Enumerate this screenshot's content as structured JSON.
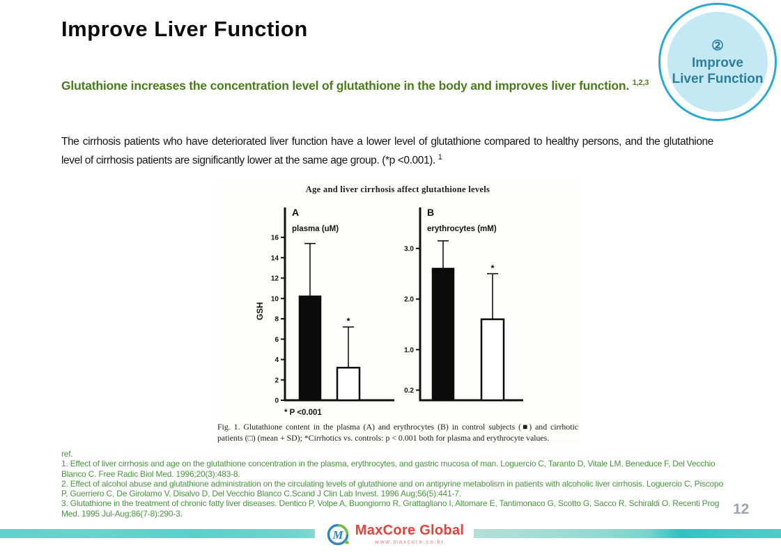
{
  "slide": {
    "title": "Improve Liver Function",
    "badge": {
      "number": "②",
      "line1": "Improve",
      "line2": "Liver Function"
    },
    "headline": {
      "text": "Glutathione increases the concentration level of glutathione in the body and improves liver function.",
      "sup": "1,2,3"
    },
    "body": {
      "text": "The cirrhosis patients who have deteriorated liver function have a lower level of glutathione compared to healthy persons, and the glutathione level of cirrhosis patients are significantly lower at the same age group.  (*p <0.001).",
      "sup": "1"
    },
    "page_number": "12"
  },
  "figure": {
    "caption": "Fig. 1. Glutathione content in the plasma (A) and erythrocytes (B) in control subjects (■) and cirrhotic patients (□) (mean + SD); *Cirrhotics vs. controls: p < 0.001 both for plasma and erythrocyte values."
  },
  "chart_data": {
    "type": "bar",
    "title": "Age and liver cirrhosis affect glutathione levels",
    "ylabel": "GSH",
    "note": "* P <0.001",
    "legend": {
      "filled_square": "control subjects",
      "open_square": "cirrhotic patients"
    },
    "panels": [
      {
        "label": "A",
        "unit_label": "plasma   (uM)",
        "ticks": [
          0,
          2,
          4,
          6,
          8,
          10,
          12,
          14,
          16
        ],
        "tick_labels": [
          "0",
          "2",
          "4",
          "6",
          "8",
          "10",
          "12",
          "14",
          "16"
        ],
        "ylim": [
          0,
          17.5
        ],
        "categories": [
          "control subjects",
          "cirrhotic patients"
        ],
        "values": [
          10.2,
          3.2
        ],
        "error_tops": [
          15.4,
          7.2
        ],
        "significant": [
          false,
          true
        ]
      },
      {
        "label": "B",
        "unit_label": "erythrocytes    (mM)",
        "ticks": [
          0.2,
          1.0,
          2.0,
          3.0
        ],
        "tick_labels": [
          "0.2",
          "1.0",
          "2.0",
          "3.0"
        ],
        "ylim": [
          0,
          3.5
        ],
        "categories": [
          "control subjects",
          "cirrhotic patients"
        ],
        "values": [
          2.6,
          1.6
        ],
        "error_tops": [
          3.15,
          2.5
        ],
        "significant": [
          false,
          true
        ]
      }
    ]
  },
  "references": {
    "heading": "ref.",
    "items": [
      "1. Effect of liver cirrhosis and age on the glutathione concentration in the plasma,  erythrocytes, and gastric mucosa of man. Loguercio C,  Taranto D,  Vitale LM,  Beneduce F,  Del Vecchio Blanco C. Free Radic Biol Med.  1996;20(3):483-8.",
      "2.  Effect of alcohol abuse and glutathione administration  on the circulating levels of glutathione and on antipyrine metabolism  in  patients with alcoholic liver cirrhosis. Loguercio C, Piscopo P,  Guerriero C,  De Girolamo  V, Disalvo D,  Del Vecchio Blanco C.Scand J Clin Lab Invest. 1996 Aug;56(5):441-7.",
      "3. Glutathione  in the treatment  of chronic fatty liver diseases. Dentico P,  Volpe A, Buongiorno R,  Grattagliano  I,  Altomare E,  Tantimonaco  G,  Scotto G,  Sacco R,  Schiraldi O.  Recenti Prog Med.  1995 Jul-Aug;86(7-8):290-3."
    ]
  },
  "footer": {
    "logo_monogram": "M",
    "logo_text": "MaxCore Global",
    "logo_url": "www.maxcore.co.kr"
  },
  "colors": {
    "heading_green": "#4a7c1e",
    "reference_green": "#4a9440",
    "badge_border_teal": "#2aa8d2",
    "badge_fill_blue": "#c5e8f5",
    "badge_text_teal": "#2d7e9a",
    "footer_teal": "#4ac9c7",
    "logo_red": "#e2423c",
    "page_number_gray": "#99a5ad"
  }
}
